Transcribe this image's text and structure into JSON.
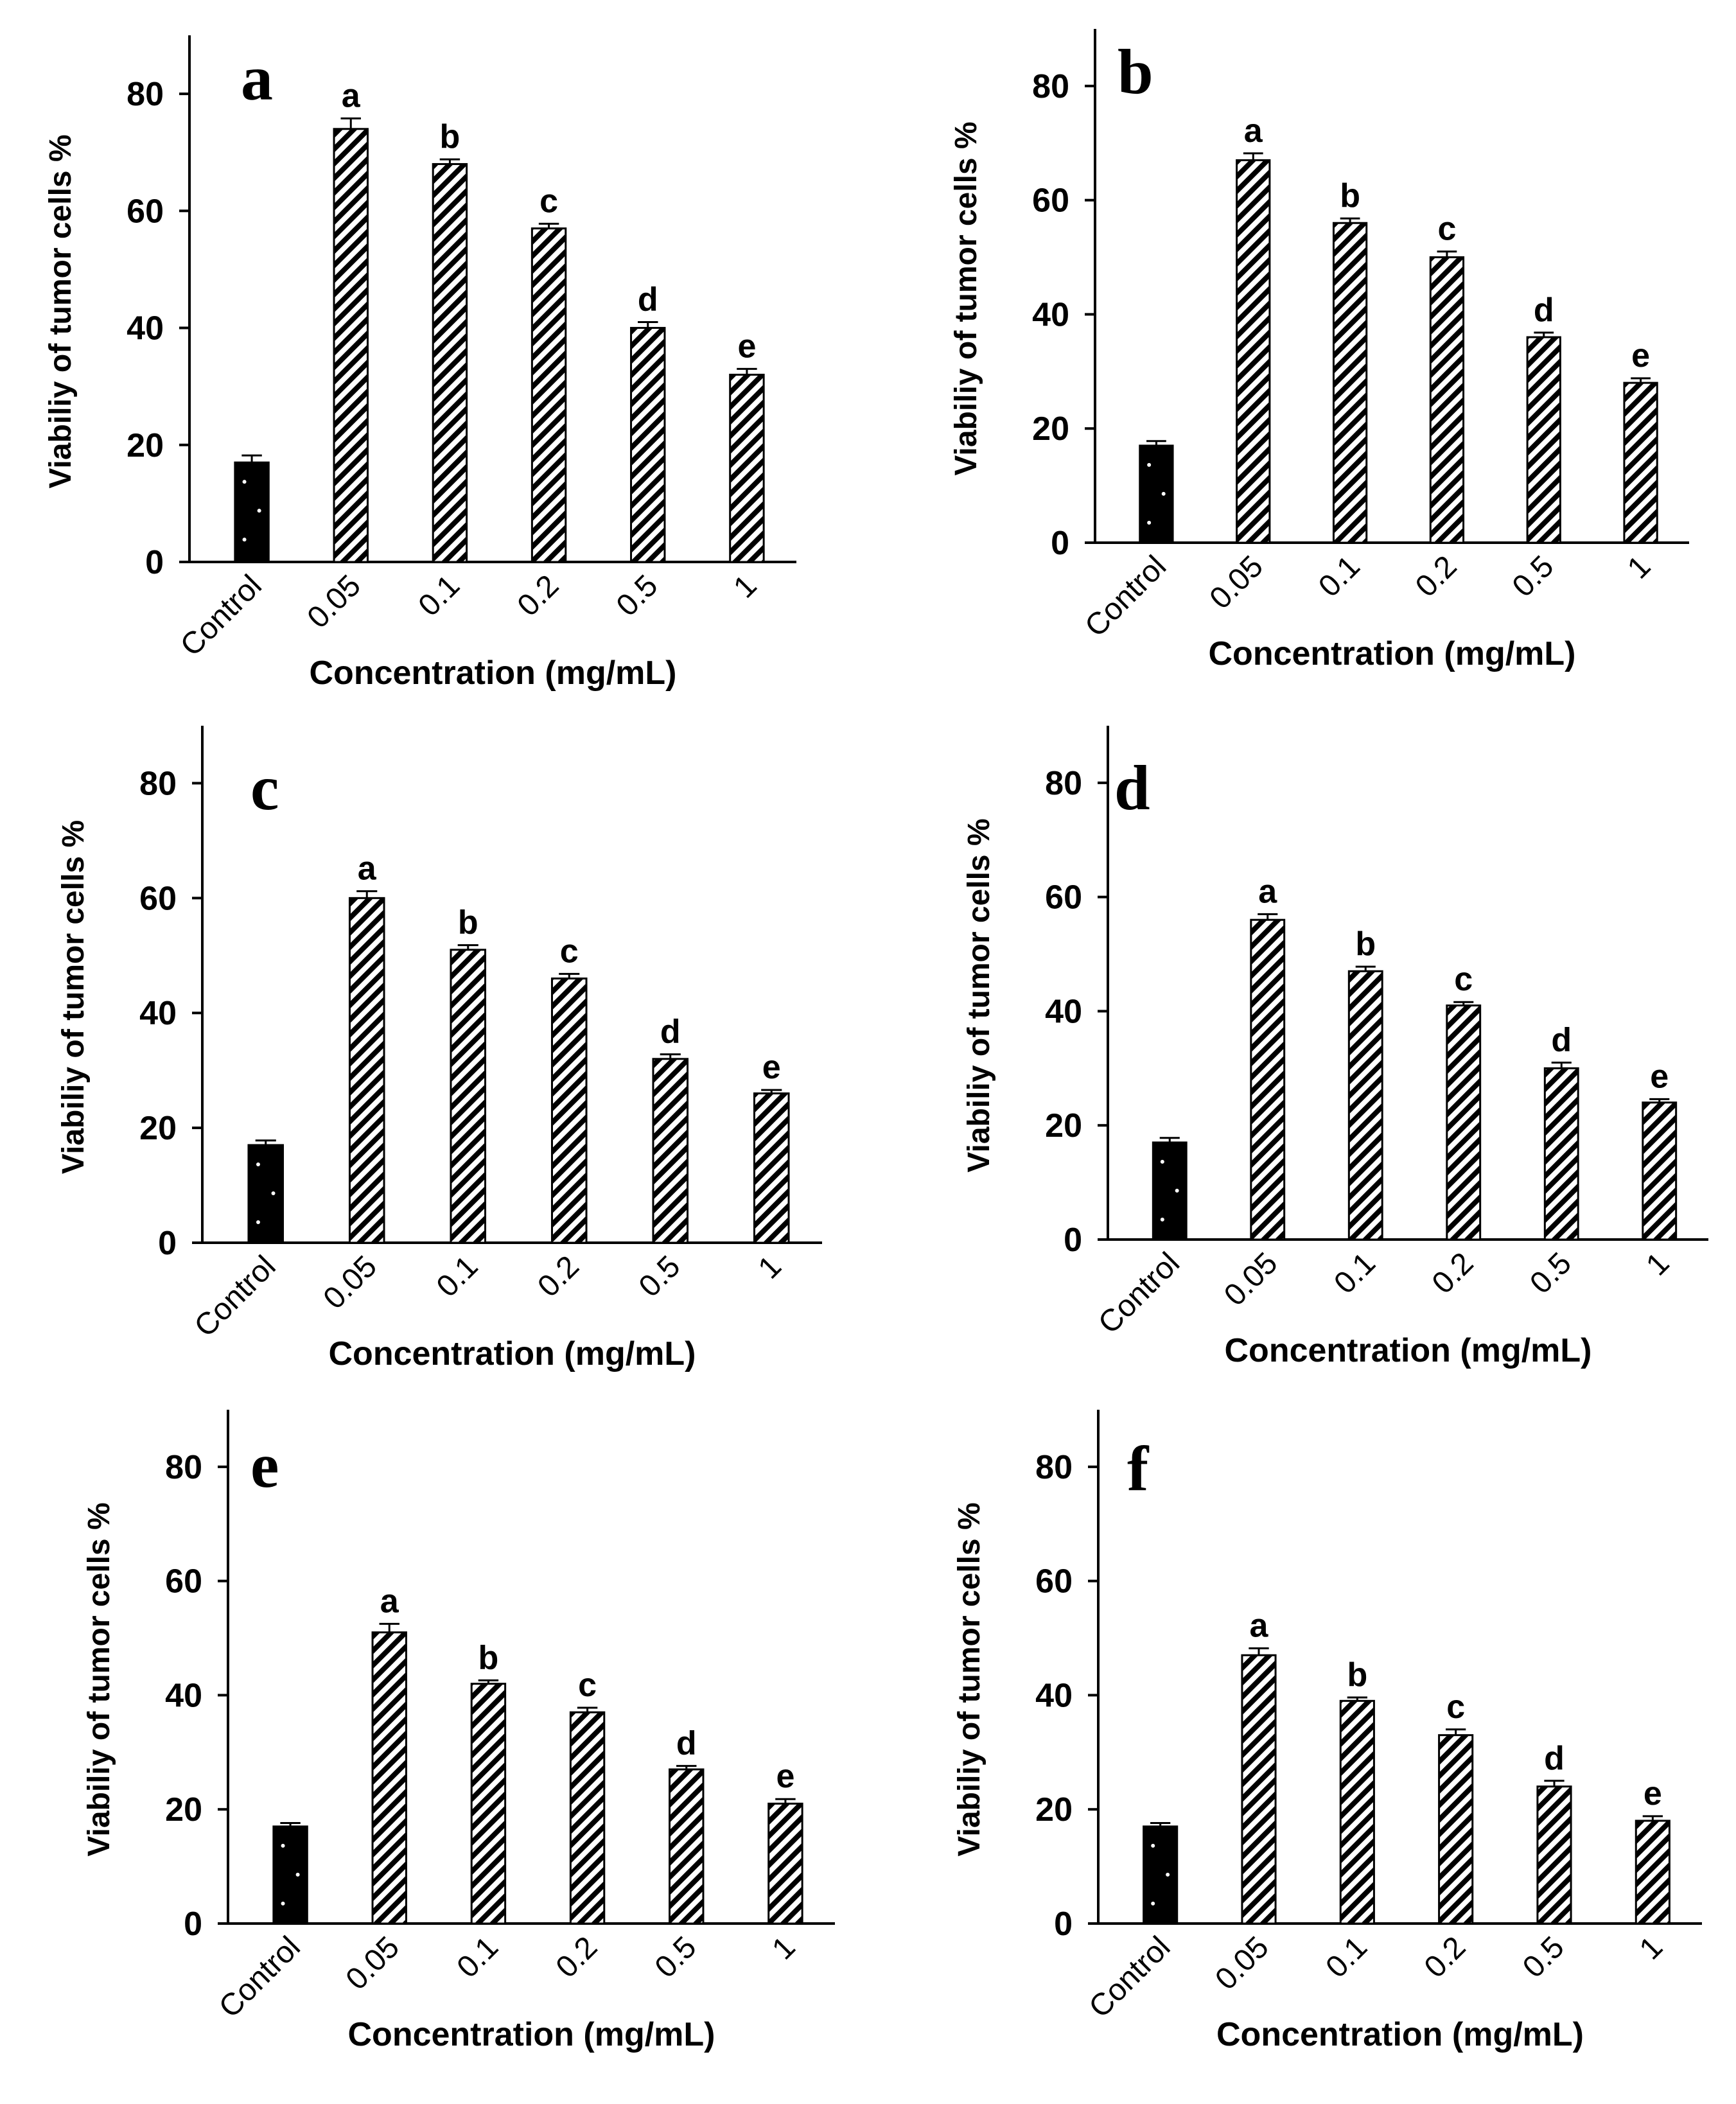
{
  "figure": {
    "description_text": ""
  },
  "chart_data": [
    {
      "type": "bar",
      "panel_label": "a",
      "categories": [
        "Control",
        "0.05",
        "0.1",
        "0.2",
        "0.5",
        "1"
      ],
      "values": [
        17,
        74,
        68,
        57,
        40,
        32
      ],
      "errors": [
        1.2,
        1.8,
        0.8,
        0.8,
        1.0,
        1.0
      ],
      "significance": [
        "",
        "a",
        "b",
        "c",
        "d",
        "e"
      ],
      "xlabel": "Concentration (mg/mL)",
      "ylabel": "Viabiliy of tumor cells %",
      "yticks": [
        "0",
        "20",
        "40",
        "60",
        "80"
      ],
      "ylim": [
        0,
        90
      ]
    },
    {
      "type": "bar",
      "panel_label": "b",
      "categories": [
        "Control",
        "0.05",
        "0.1",
        "0.2",
        "0.5",
        "1"
      ],
      "values": [
        17,
        67,
        56,
        50,
        36,
        28
      ],
      "errors": [
        0.8,
        1.2,
        0.8,
        1.0,
        0.8,
        0.8
      ],
      "significance": [
        "",
        "a",
        "b",
        "c",
        "d",
        "e"
      ],
      "xlabel": "Concentration (mg/mL)",
      "ylabel": "Viabiliy of tumor cells %",
      "yticks": [
        "0",
        "20",
        "40",
        "60",
        "80"
      ],
      "ylim": [
        0,
        90
      ]
    },
    {
      "type": "bar",
      "panel_label": "c",
      "categories": [
        "Control",
        "0.05",
        "0.1",
        "0.2",
        "0.5",
        "1"
      ],
      "values": [
        17,
        60,
        51,
        46,
        32,
        26
      ],
      "errors": [
        0.8,
        1.2,
        0.8,
        0.8,
        0.8,
        0.6
      ],
      "significance": [
        "",
        "a",
        "b",
        "c",
        "d",
        "e"
      ],
      "xlabel": "Concentration (mg/mL)",
      "ylabel": "Viabiliy of tumor cells %",
      "yticks": [
        "0",
        "20",
        "40",
        "60",
        "80"
      ],
      "ylim": [
        0,
        90
      ]
    },
    {
      "type": "bar",
      "panel_label": "d",
      "categories": [
        "Control",
        "0.05",
        "0.1",
        "0.2",
        "0.5",
        "1"
      ],
      "values": [
        17,
        56,
        47,
        41,
        30,
        24
      ],
      "errors": [
        0.8,
        1.0,
        0.8,
        0.6,
        1.0,
        0.6
      ],
      "significance": [
        "",
        "a",
        "b",
        "c",
        "d",
        "e"
      ],
      "xlabel": "Concentration (mg/mL)",
      "ylabel": "Viabiliy of tumor cells %",
      "yticks": [
        "0",
        "20",
        "40",
        "60",
        "80"
      ],
      "ylim": [
        0,
        90
      ]
    },
    {
      "type": "bar",
      "panel_label": "e",
      "categories": [
        "Control",
        "0.05",
        "0.1",
        "0.2",
        "0.5",
        "1"
      ],
      "values": [
        17,
        51,
        42,
        37,
        27,
        21
      ],
      "errors": [
        0.6,
        1.5,
        0.6,
        0.8,
        0.6,
        0.8
      ],
      "significance": [
        "",
        "a",
        "b",
        "c",
        "d",
        "e"
      ],
      "xlabel": "Concentration (mg/mL)",
      "ylabel": "Viabiliy of tumor cells %",
      "yticks": [
        "0",
        "20",
        "40",
        "60",
        "80"
      ],
      "ylim": [
        0,
        90
      ]
    },
    {
      "type": "bar",
      "panel_label": "f",
      "categories": [
        "Control",
        "0.05",
        "0.1",
        "0.2",
        "0.5",
        "1"
      ],
      "values": [
        17,
        47,
        39,
        33,
        24,
        18
      ],
      "errors": [
        0.6,
        1.2,
        0.6,
        1.0,
        1.0,
        0.8
      ],
      "significance": [
        "",
        "a",
        "b",
        "c",
        "d",
        "e"
      ],
      "xlabel": "Concentration (mg/mL)",
      "ylabel": "Viabiliy of tumor cells %",
      "yticks": [
        "0",
        "20",
        "40",
        "60",
        "80"
      ],
      "ylim": [
        0,
        90
      ]
    }
  ],
  "colors": {
    "ink": "#000000",
    "background": "#ffffff",
    "control_dots": "#ffffff"
  }
}
